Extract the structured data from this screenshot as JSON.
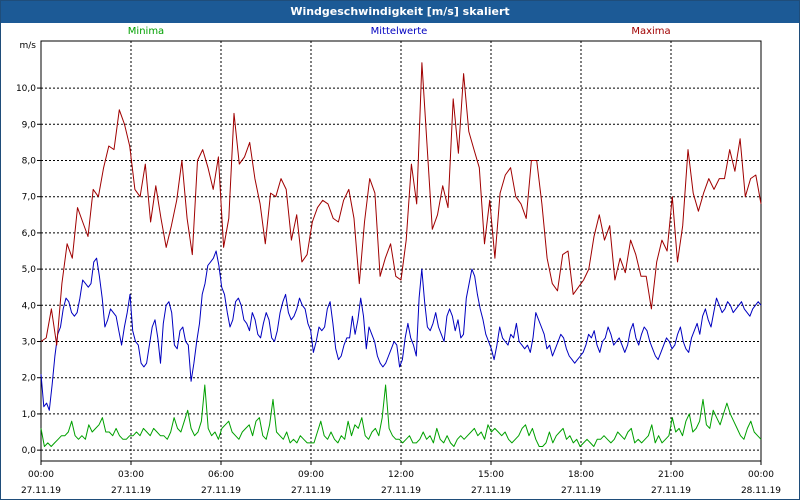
{
  "window": {
    "title": "Windgeschwindigkeit [m/s] skaliert"
  },
  "chart_data": {
    "type": "line",
    "title": "Windgeschwindigkeit [m/s] skaliert",
    "ylabel": "m/s",
    "ylim": [
      -0.3,
      11.3
    ],
    "xlim_hours": [
      0,
      24
    ],
    "yticks": [
      "0,0",
      "1,0",
      "2,0",
      "3,0",
      "4,0",
      "5,0",
      "6,0",
      "7,0",
      "8,0",
      "9,0",
      "10,0"
    ],
    "xticks": [
      {
        "time": "00:00",
        "date": "27.11.19"
      },
      {
        "time": "03:00",
        "date": "27.11.19"
      },
      {
        "time": "06:00",
        "date": "27.11.19"
      },
      {
        "time": "09:00",
        "date": "27.11.19"
      },
      {
        "time": "12:00",
        "date": "27.11.19"
      },
      {
        "time": "15:00",
        "date": "27.11.19"
      },
      {
        "time": "18:00",
        "date": "27.11.19"
      },
      {
        "time": "21:00",
        "date": "27.11.19"
      },
      {
        "time": "00:00",
        "date": "28.11.19"
      }
    ],
    "grid": true,
    "legend_placement": "top",
    "series": [
      {
        "name": "Minima",
        "color": "#00a000",
        "values": [
          0.6,
          0.1,
          0.2,
          0.1,
          0.2,
          0.3,
          0.4,
          0.4,
          0.5,
          0.8,
          0.4,
          0.3,
          0.4,
          0.3,
          0.7,
          0.5,
          0.6,
          0.7,
          0.9,
          0.5,
          0.5,
          0.4,
          0.6,
          0.4,
          0.3,
          0.3,
          0.4,
          0.4,
          0.5,
          0.4,
          0.6,
          0.5,
          0.4,
          0.6,
          0.5,
          0.4,
          0.4,
          0.3,
          0.5,
          0.9,
          0.6,
          0.5,
          0.8,
          1.1,
          0.6,
          0.4,
          0.5,
          0.8,
          1.8,
          0.6,
          0.4,
          0.5,
          0.3,
          0.6,
          0.7,
          0.8,
          0.5,
          0.4,
          0.3,
          0.5,
          0.6,
          0.7,
          0.4,
          0.8,
          0.9,
          0.4,
          0.3,
          0.7,
          1.4,
          0.5,
          0.4,
          0.3,
          0.5,
          0.2,
          0.3,
          0.2,
          0.4,
          0.3,
          0.2,
          0.2,
          0.2,
          0.5,
          0.8,
          0.4,
          0.3,
          0.5,
          0.3,
          0.2,
          0.4,
          0.3,
          0.8,
          0.4,
          0.7,
          0.6,
          0.9,
          0.4,
          0.3,
          0.5,
          0.6,
          0.4,
          0.9,
          1.8,
          0.6,
          0.4,
          0.3,
          0.3,
          0.2,
          0.3,
          0.4,
          0.2,
          0.2,
          0.3,
          0.5,
          0.3,
          0.4,
          0.2,
          0.6,
          0.3,
          0.2,
          0.4,
          0.2,
          0.1,
          0.3,
          0.4,
          0.3,
          0.4,
          0.5,
          0.6,
          0.4,
          0.5,
          0.3,
          0.7,
          0.5,
          0.6,
          0.5,
          0.4,
          0.5,
          0.3,
          0.2,
          0.3,
          0.4,
          0.6,
          0.7,
          0.4,
          0.6,
          0.3,
          0.1,
          0.1,
          0.2,
          0.5,
          0.2,
          0.4,
          0.5,
          0.6,
          0.3,
          0.4,
          0.2,
          0.3,
          0.1,
          0.2,
          0.3,
          0.2,
          0.1,
          0.3,
          0.3,
          0.4,
          0.3,
          0.2,
          0.3,
          0.5,
          0.4,
          0.3,
          0.5,
          0.6,
          0.2,
          0.3,
          0.2,
          0.3,
          0.4,
          0.7,
          0.2,
          0.4,
          0.2,
          0.3,
          0.4,
          0.9,
          0.5,
          0.6,
          0.4,
          0.8,
          1.0,
          0.5,
          0.6,
          0.8,
          1.4,
          0.7,
          0.6,
          1.1,
          0.9,
          0.7,
          1.0,
          1.3,
          1.0,
          0.8,
          0.6,
          0.4,
          0.3,
          0.6,
          0.8,
          0.5,
          0.4,
          0.3
        ]
      },
      {
        "name": "Mittelwerte",
        "color": "#0000c0",
        "values": [
          2.1,
          1.2,
          1.3,
          1.1,
          1.8,
          2.6,
          3.2,
          3.4,
          3.9,
          4.2,
          4.1,
          3.8,
          3.7,
          3.8,
          4.2,
          4.7,
          4.6,
          4.5,
          4.6,
          5.2,
          5.3,
          4.8,
          4.2,
          3.4,
          3.6,
          3.9,
          3.8,
          3.7,
          3.3,
          2.9,
          3.4,
          3.8,
          4.3,
          3.3,
          3.0,
          2.9,
          2.4,
          2.3,
          2.4,
          2.9,
          3.4,
          3.6,
          3.1,
          2.4,
          3.5,
          4.0,
          4.1,
          3.8,
          2.9,
          2.8,
          3.3,
          3.4,
          3.0,
          2.9,
          1.9,
          2.4,
          3.0,
          3.5,
          4.3,
          4.6,
          5.1,
          5.2,
          5.3,
          5.5,
          5.1,
          4.5,
          4.3,
          3.8,
          3.4,
          3.6,
          4.1,
          4.2,
          4.0,
          3.6,
          3.5,
          3.3,
          3.8,
          3.6,
          3.2,
          3.1,
          3.5,
          3.8,
          3.6,
          3.1,
          3.0,
          3.3,
          3.8,
          4.1,
          4.3,
          3.8,
          3.6,
          3.7,
          3.9,
          4.2,
          4.0,
          3.9,
          3.5,
          3.3,
          2.7,
          3.0,
          3.4,
          3.3,
          3.4,
          3.9,
          4.1,
          3.5,
          2.8,
          2.5,
          2.6,
          2.9,
          3.1,
          3.1,
          3.7,
          3.2,
          3.6,
          4.2,
          3.7,
          2.8,
          3.4,
          3.2,
          3.0,
          2.6,
          2.4,
          2.3,
          2.4,
          2.6,
          2.8,
          3.0,
          2.9,
          2.3,
          2.5,
          3.1,
          3.5,
          3.1,
          2.9,
          2.6,
          4.2,
          5.0,
          4.1,
          3.4,
          3.3,
          3.5,
          3.8,
          3.4,
          3.2,
          3.0,
          3.7,
          3.9,
          3.7,
          3.3,
          3.6,
          3.1,
          3.2,
          4.2,
          4.6,
          5.0,
          4.8,
          4.3,
          3.9,
          3.6,
          3.2,
          3.0,
          2.8,
          2.5,
          2.9,
          3.4,
          3.1,
          3.0,
          2.9,
          3.2,
          3.1,
          3.5,
          3.0,
          2.9,
          2.8,
          2.9,
          2.7,
          3.1,
          3.8,
          3.6,
          3.4,
          3.2,
          2.8,
          2.9,
          2.6,
          2.8,
          3.0,
          3.2,
          3.1,
          2.8,
          2.6,
          2.5,
          2.4,
          2.5,
          2.6,
          2.7,
          2.9,
          3.2,
          3.1,
          3.3,
          2.9,
          2.7,
          3.0,
          3.1,
          3.4,
          3.2,
          2.9,
          3.0,
          3.1,
          2.9,
          2.7,
          2.9,
          3.3,
          3.5,
          3.1,
          2.9,
          3.2,
          3.4,
          3.3,
          3.0,
          2.8,
          2.6,
          2.5,
          2.7,
          2.9,
          3.1,
          3.0,
          2.8,
          2.9,
          3.2,
          3.4,
          3.0,
          2.8,
          2.7,
          3.1,
          3.3,
          3.5,
          3.2,
          3.7,
          3.9,
          3.6,
          3.4,
          3.8,
          4.2,
          4.0,
          3.8,
          3.9,
          4.1,
          4.0,
          3.8,
          3.9,
          4.0,
          4.1,
          3.9,
          3.8,
          3.7,
          3.9,
          4.0,
          4.1,
          4.0
        ]
      },
      {
        "name": "Maxima",
        "color": "#a00000",
        "values": [
          3.0,
          3.1,
          3.9,
          2.9,
          4.6,
          5.7,
          5.3,
          6.7,
          6.3,
          5.9,
          7.2,
          7.0,
          7.8,
          8.4,
          8.3,
          9.4,
          9.0,
          8.4,
          7.2,
          7.0,
          7.9,
          6.3,
          7.3,
          6.4,
          5.6,
          6.2,
          6.9,
          8.0,
          6.4,
          5.4,
          8.0,
          8.3,
          7.8,
          7.2,
          8.1,
          5.6,
          6.4,
          9.3,
          7.9,
          8.1,
          8.5,
          7.5,
          6.8,
          5.7,
          7.1,
          7.0,
          7.5,
          7.2,
          5.8,
          6.5,
          5.2,
          5.4,
          6.3,
          6.7,
          6.9,
          6.8,
          6.4,
          6.3,
          6.9,
          7.2,
          6.4,
          4.6,
          6.3,
          7.5,
          7.1,
          4.8,
          5.3,
          5.7,
          4.8,
          4.7,
          5.8,
          7.9,
          6.8,
          10.7,
          8.4,
          6.1,
          6.5,
          7.3,
          6.7,
          9.7,
          8.2,
          10.4,
          8.8,
          8.3,
          7.8,
          5.7,
          6.9,
          5.3,
          7.1,
          7.6,
          7.8,
          7.0,
          6.8,
          6.4,
          8.0,
          8.0,
          6.8,
          5.3,
          4.6,
          4.4,
          5.4,
          5.5,
          4.3,
          4.5,
          4.7,
          5.0,
          5.9,
          6.5,
          5.8,
          6.2,
          4.7,
          5.3,
          4.9,
          5.8,
          5.4,
          4.8,
          4.8,
          3.9,
          5.2,
          5.8,
          5.5,
          7.0,
          5.2,
          6.2,
          8.3,
          7.1,
          6.6,
          7.1,
          7.5,
          7.2,
          7.5,
          7.5,
          8.3,
          7.7,
          8.6,
          7.0,
          7.5,
          7.6,
          6.8
        ]
      }
    ]
  }
}
